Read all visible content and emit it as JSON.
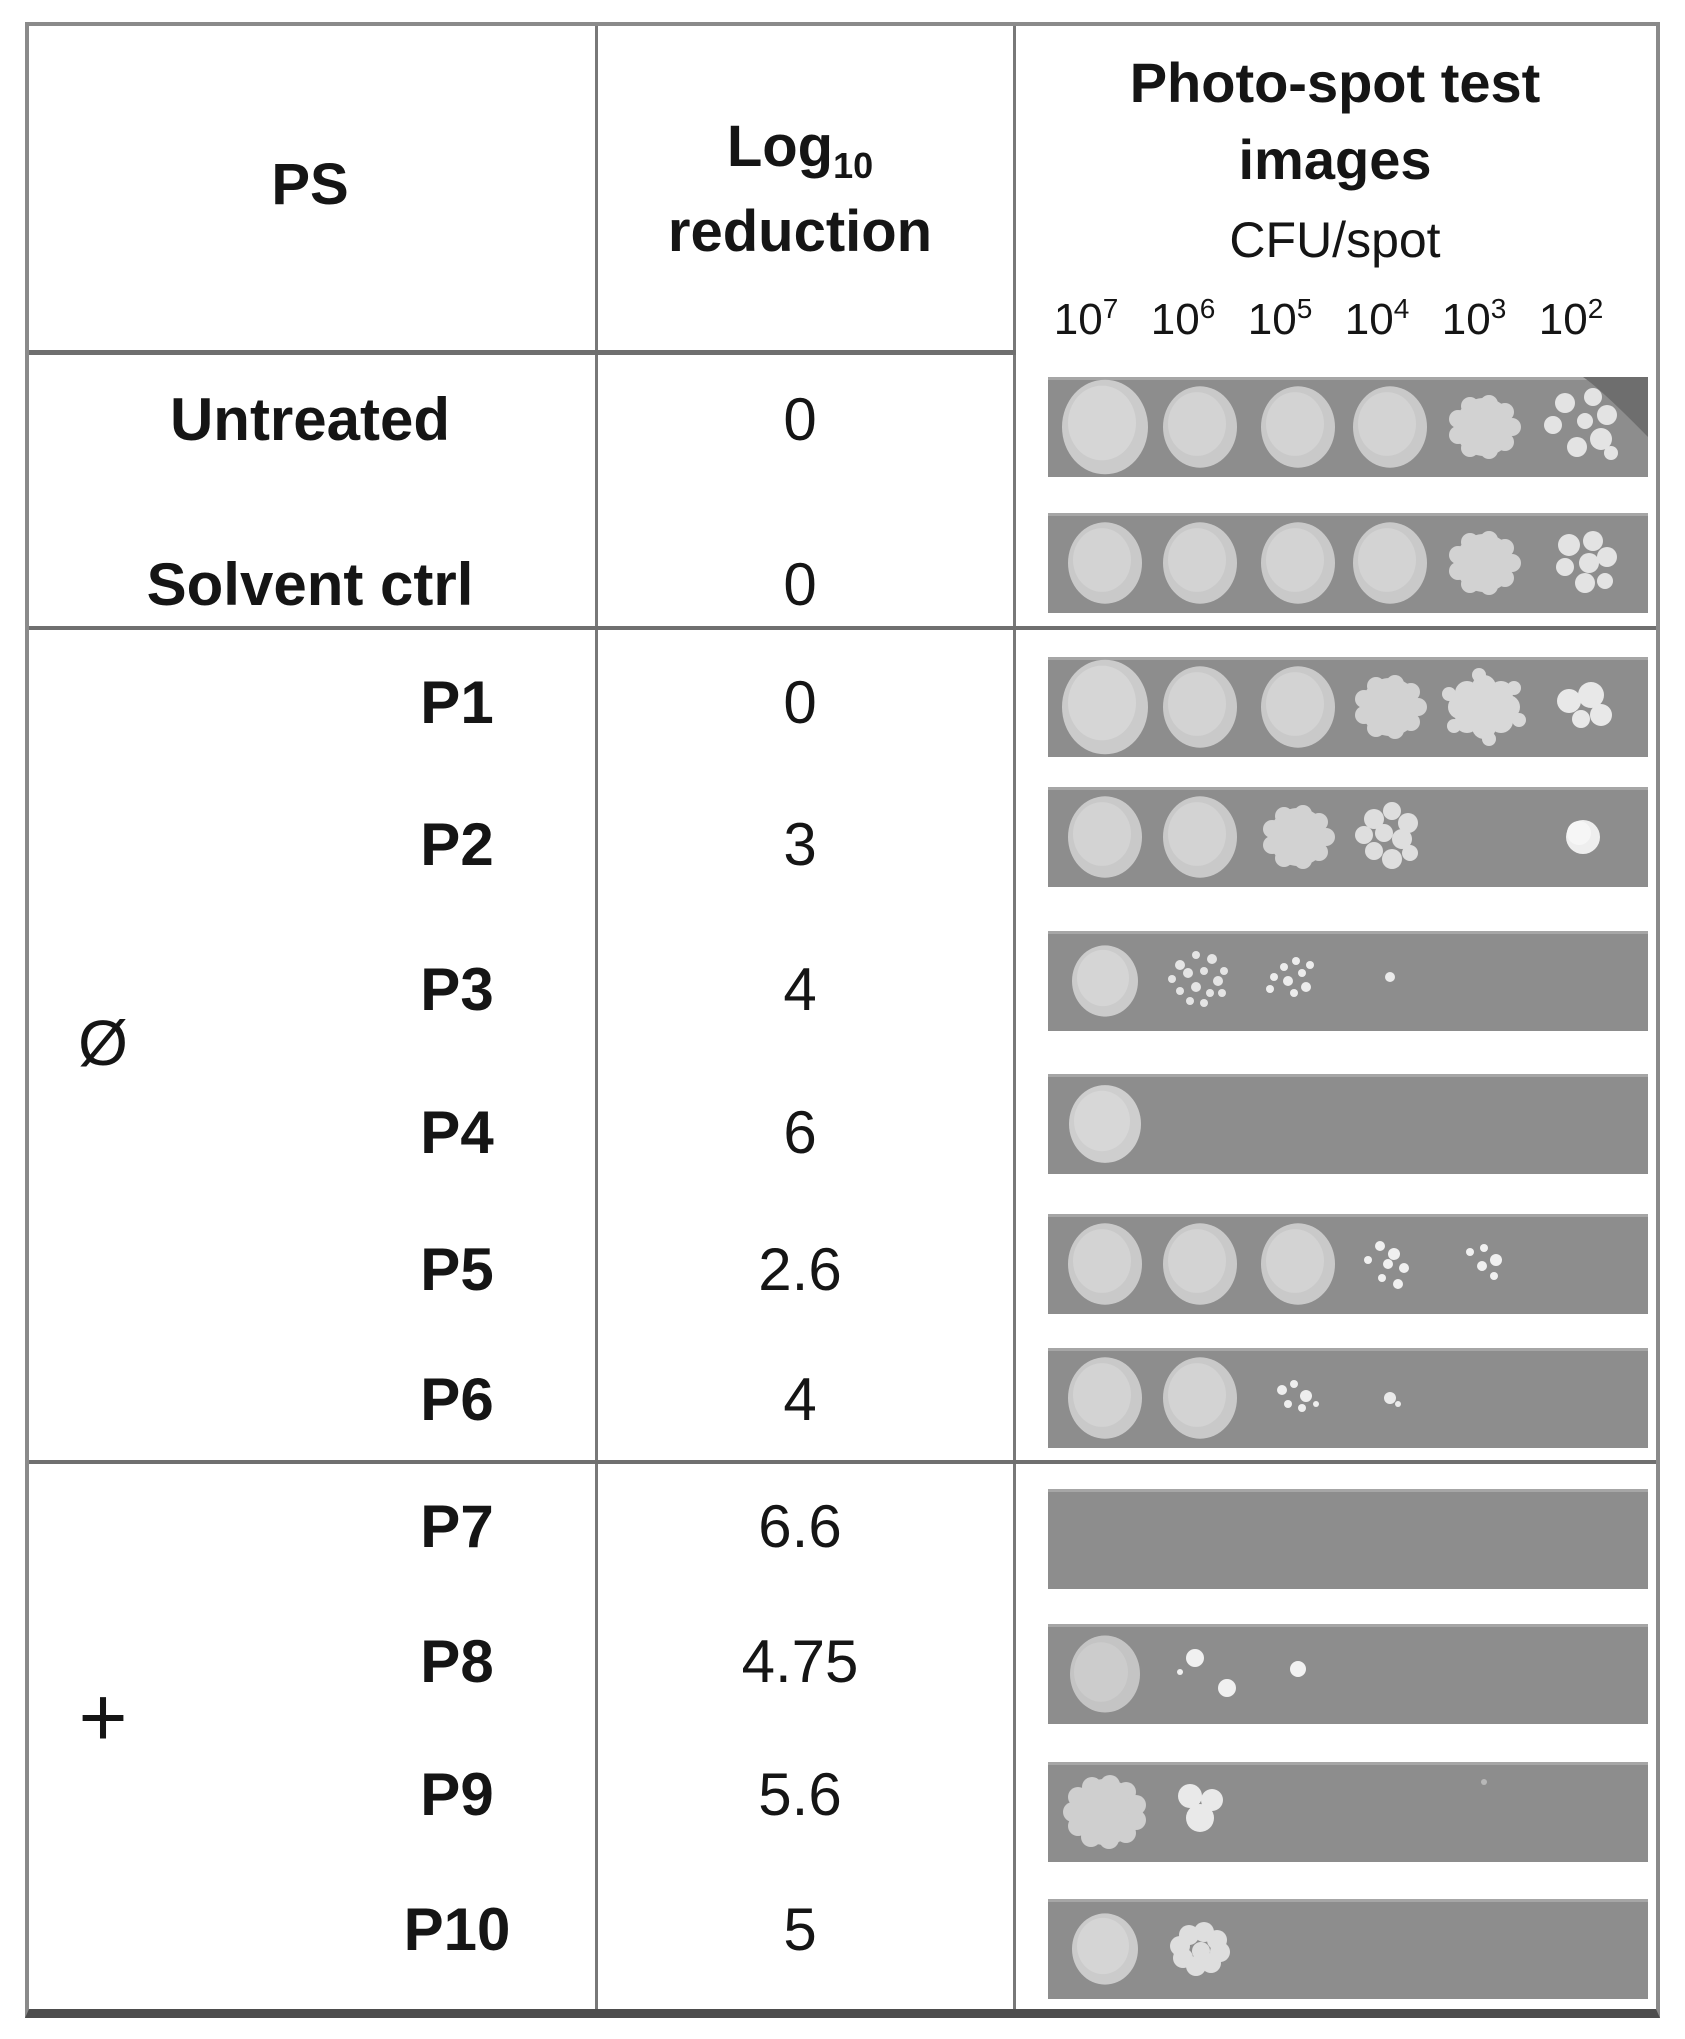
{
  "table": {
    "header": {
      "ps_label": "PS",
      "log_label_base": "Log",
      "log_label_sub": "10",
      "log_label_line2": "reduction",
      "images_title_line1": "Photo-spot test",
      "images_title_line2": "images",
      "cfu_label": "CFU/spot",
      "dilutions": [
        {
          "base": "10",
          "exp": "7"
        },
        {
          "base": "10",
          "exp": "6"
        },
        {
          "base": "10",
          "exp": "5"
        },
        {
          "base": "10",
          "exp": "4"
        },
        {
          "base": "10",
          "exp": "3"
        },
        {
          "base": "10",
          "exp": "2"
        }
      ]
    },
    "groups": [
      {
        "symbol": "Ø",
        "rows": "P1–P6"
      },
      {
        "symbol": "+",
        "rows": "P7–P10"
      }
    ],
    "rows": [
      {
        "ps": "Untreated",
        "log_reduction": "0",
        "spots": [
          "full-lg",
          "full",
          "full",
          "full",
          "rough",
          "colonies"
        ],
        "dish_corner": true
      },
      {
        "ps": "Solvent ctrl",
        "log_reduction": "0",
        "spots": [
          "full",
          "full",
          "full",
          "full",
          "rough",
          "colonies2"
        ]
      },
      {
        "ps": "P1",
        "log_reduction": "0",
        "spots": [
          "full-lg",
          "full",
          "full",
          "rough",
          "flower",
          "colpair"
        ]
      },
      {
        "ps": "P2",
        "log_reduction": "3",
        "spots": [
          "full",
          "full",
          "rough",
          "cluster",
          "none",
          "single"
        ]
      },
      {
        "ps": "P3",
        "log_reduction": "4",
        "spots": [
          "full-sm",
          "speckle",
          "scatter8",
          "tinydot",
          "none",
          "none"
        ]
      },
      {
        "ps": "P4",
        "log_reduction": "6",
        "spots": [
          "full-sm2",
          "none",
          "none",
          "none",
          "none",
          "none"
        ]
      },
      {
        "ps": "P5",
        "log_reduction": "2.6",
        "spots": [
          "full",
          "full",
          "full",
          "scatter6",
          "scatter5",
          "none"
        ]
      },
      {
        "ps": "P6",
        "log_reduction": "4",
        "spots": [
          "full",
          "full",
          "scatterP6",
          "tinydot2",
          "none",
          "none"
        ]
      },
      {
        "ps": "P7",
        "log_reduction": "6.6",
        "spots": [
          "none",
          "none",
          "none",
          "none",
          "none",
          "none"
        ]
      },
      {
        "ps": "P8",
        "log_reduction": "4.75",
        "spots": [
          "full-tex",
          "pair",
          "dot",
          "none",
          "none",
          "none"
        ]
      },
      {
        "ps": "P9",
        "log_reduction": "5.6",
        "spots": [
          "rough-lg",
          "triple",
          "none",
          "none",
          "speck",
          "none"
        ]
      },
      {
        "ps": "P10",
        "log_reduction": "5",
        "spots": [
          "full-sm",
          "flower2",
          "none",
          "none",
          "none",
          "none"
        ]
      }
    ]
  },
  "colors": {
    "strip_background": "#8d8d8d",
    "spot_light": "#cfcfcf",
    "colony_bright": "#efefef",
    "dish_edge": "#6e6e6e",
    "rule_gray": "#787878"
  }
}
